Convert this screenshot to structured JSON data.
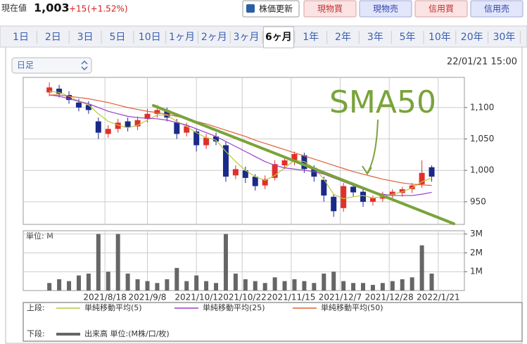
{
  "header": {
    "price_label": "現在値",
    "price": "1,003",
    "change": "+15",
    "change_pct": "(+1.52%)",
    "refresh": "株価更新",
    "buttons": [
      "現物買",
      "現物売",
      "信用買",
      "信用売"
    ]
  },
  "tabs": [
    "1日",
    "2日",
    "3日",
    "5日",
    "10日",
    "1ヶ月",
    "2ヶ月",
    "3ヶ月",
    "6ヶ月",
    "1年",
    "2年",
    "3年",
    "5年",
    "10年",
    "20年",
    "30年"
  ],
  "active_tab": 8,
  "interval_select": "日足",
  "timestamp": "22/01/21 15:00",
  "annotation": "SMA50",
  "chart_data": [
    {
      "type": "candlestick",
      "x": [
        8,
        11,
        14,
        17,
        20,
        23,
        26,
        29,
        32,
        35,
        38,
        41,
        44,
        47,
        50,
        53,
        56,
        59,
        62,
        65,
        68,
        71,
        74,
        77,
        80,
        83,
        86,
        89,
        92,
        95,
        98,
        101,
        104,
        107,
        110,
        113,
        116,
        119,
        122,
        125
      ],
      "open": [
        1124,
        1130,
        1120,
        1108,
        1104,
        1078,
        1058,
        1066,
        1078,
        1070,
        1082,
        1090,
        1096,
        1076,
        1060,
        1062,
        1040,
        1054,
        1040,
        992,
        1000,
        990,
        976,
        988,
        1008,
        1014,
        1024,
        1004,
        985,
        958,
        940,
        974,
        966,
        950,
        955,
        961,
        964,
        970,
        978,
        1005
      ],
      "close": [
        1132,
        1122,
        1112,
        1100,
        1096,
        1060,
        1066,
        1076,
        1068,
        1080,
        1090,
        1096,
        1084,
        1058,
        1070,
        1040,
        1052,
        1046,
        990,
        1002,
        988,
        975,
        986,
        1010,
        1016,
        1026,
        1002,
        990,
        960,
        935,
        975,
        965,
        950,
        956,
        960,
        966,
        970,
        976,
        996,
        990
      ],
      "high": [
        1140,
        1136,
        1126,
        1114,
        1110,
        1084,
        1072,
        1082,
        1084,
        1086,
        1098,
        1104,
        1100,
        1082,
        1076,
        1066,
        1058,
        1060,
        1046,
        1008,
        1006,
        994,
        992,
        1016,
        1022,
        1030,
        1028,
        1008,
        990,
        962,
        980,
        978,
        970,
        960,
        966,
        970,
        974,
        980,
        1016,
        1008
      ],
      "low": [
        1118,
        1116,
        1106,
        1094,
        1090,
        1050,
        1052,
        1060,
        1062,
        1064,
        1076,
        1084,
        1078,
        1050,
        1054,
        1030,
        1034,
        1040,
        982,
        986,
        980,
        968,
        970,
        984,
        1002,
        1008,
        996,
        982,
        950,
        926,
        934,
        958,
        942,
        944,
        950,
        956,
        958,
        964,
        972,
        982
      ],
      "up_color": "#e0302a",
      "down_color": "#1a2a8a",
      "series": [
        {
          "name": "単純移動平均(5)",
          "color": "#b8c83a",
          "values": [
            1126,
            1124,
            1118,
            1110,
            1104,
            1090,
            1078,
            1072,
            1068,
            1072,
            1080,
            1088,
            1088,
            1078,
            1070,
            1060,
            1052,
            1048,
            1030,
            1014,
            1000,
            990,
            984,
            992,
            1004,
            1016,
            1014,
            1004,
            986,
            962,
            955,
            958,
            960,
            956,
            958,
            962,
            966,
            972,
            982,
            988
          ]
        },
        {
          "name": "単純移動平均(25)",
          "color": "#9b3fc8",
          "values": [
            1120,
            1118,
            1114,
            1110,
            1106,
            1100,
            1094,
            1090,
            1086,
            1084,
            1083,
            1082,
            1080,
            1076,
            1072,
            1066,
            1060,
            1054,
            1046,
            1038,
            1030,
            1022,
            1014,
            1008,
            1004,
            1002,
            1000,
            998,
            994,
            988,
            982,
            976,
            970,
            966,
            962,
            960,
            960,
            960,
            962,
            965
          ]
        },
        {
          "name": "単純移動平均(50)",
          "color": "#e0603a",
          "values": [
            1120,
            1120,
            1118,
            1116,
            1114,
            1111,
            1108,
            1104,
            1100,
            1097,
            1094,
            1092,
            1089,
            1086,
            1082,
            1078,
            1074,
            1069,
            1064,
            1059,
            1054,
            1048,
            1043,
            1038,
            1033,
            1028,
            1023,
            1018,
            1013,
            1008,
            1003,
            998,
            994,
            990,
            986,
            983,
            980,
            978,
            977,
            976
          ]
        }
      ],
      "legend_label": "上段:",
      "xlim": [
        0,
        135
      ],
      "xticks": [
        {
          "value": 25,
          "label": "2021/8/18"
        },
        {
          "value": 38,
          "label": "2021/9/8"
        },
        {
          "value": 53,
          "label": "2021/10/1"
        },
        {
          "value": 67,
          "label": "2021/10/22"
        },
        {
          "value": 82,
          "label": "2021/11/15"
        },
        {
          "value": 97,
          "label": "2021/12/7"
        },
        {
          "value": 112,
          "label": "2021/12/28"
        },
        {
          "value": 127,
          "label": "2022/1/21"
        }
      ],
      "ylim": [
        914,
        1148
      ],
      "yticks": [
        950,
        {
          "value": 1000,
          "label": "1,000"
        },
        {
          "value": 1050,
          "label": "1,050"
        },
        {
          "value": 1100,
          "label": "1,100"
        }
      ],
      "grid": true
    },
    {
      "type": "bar",
      "unit_label": "単位: M",
      "x": [
        8,
        11,
        14,
        17,
        20,
        23,
        26,
        29,
        32,
        35,
        38,
        41,
        44,
        47,
        50,
        53,
        56,
        59,
        62,
        65,
        68,
        71,
        74,
        77,
        80,
        83,
        86,
        89,
        92,
        95,
        98,
        101,
        104,
        107,
        110,
        113,
        116,
        119,
        122,
        125
      ],
      "values": [
        0.4,
        0.6,
        0.5,
        0.8,
        0.9,
        3.0,
        1.0,
        3.0,
        0.9,
        0.6,
        0.5,
        0.4,
        0.6,
        1.2,
        0.5,
        0.8,
        0.5,
        0.4,
        3.0,
        0.9,
        0.6,
        0.5,
        0.4,
        0.7,
        0.5,
        0.6,
        0.5,
        0.4,
        0.9,
        1.0,
        0.5,
        0.4,
        0.4,
        0.3,
        0.4,
        0.5,
        0.6,
        0.7,
        2.4,
        0.9
      ],
      "color": "#666666",
      "legend_label": "下段:",
      "name": "出来高 単位:(M株/口/枚)",
      "xlim": [
        0,
        135
      ],
      "ylim": [
        0,
        3.1
      ],
      "yticks": [
        {
          "value": 1,
          "label": "1M"
        },
        {
          "value": 2,
          "label": "2M"
        },
        {
          "value": 3,
          "label": "3M"
        }
      ],
      "grid": true
    }
  ]
}
